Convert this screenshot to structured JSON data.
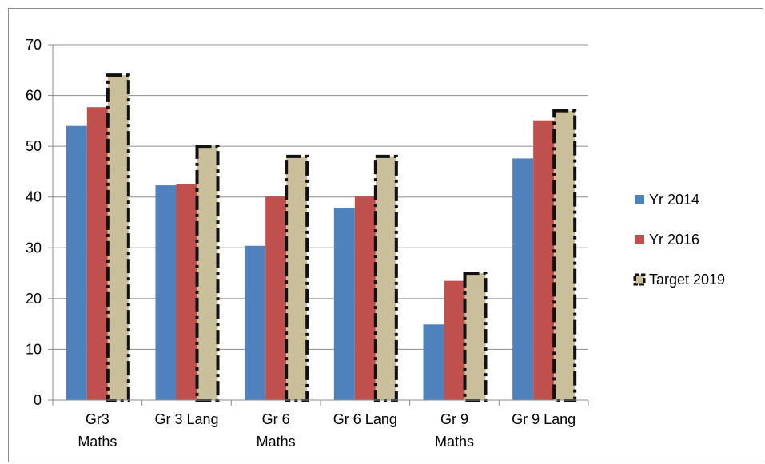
{
  "chart_data": {
    "type": "bar",
    "title": "",
    "xlabel": "",
    "ylabel": "",
    "ylim": [
      0,
      70
    ],
    "yticks": [
      0,
      10,
      20,
      30,
      40,
      50,
      60,
      70
    ],
    "grid": true,
    "legend_position": "right",
    "categories": [
      [
        "Gr3",
        "Maths"
      ],
      [
        "Gr 3 Lang"
      ],
      [
        "Gr 6",
        "Maths"
      ],
      [
        "Gr 6 Lang"
      ],
      [
        "Gr 9",
        "Maths"
      ],
      [
        "Gr 9 Lang"
      ]
    ],
    "series": [
      {
        "name": "Yr 2014",
        "color": "#4f81bd",
        "style": "solid",
        "values": [
          54,
          42.3,
          30.4,
          37.9,
          14.9,
          47.6
        ]
      },
      {
        "name": "Yr 2016",
        "color": "#c0504d",
        "style": "solid",
        "values": [
          57.7,
          42.5,
          40.1,
          40.1,
          23.5,
          55.1
        ]
      },
      {
        "name": "Target 2019",
        "color": "#c9bf9a",
        "style": "dashed-outline",
        "values": [
          64,
          50,
          48,
          48,
          25,
          57
        ]
      }
    ]
  }
}
